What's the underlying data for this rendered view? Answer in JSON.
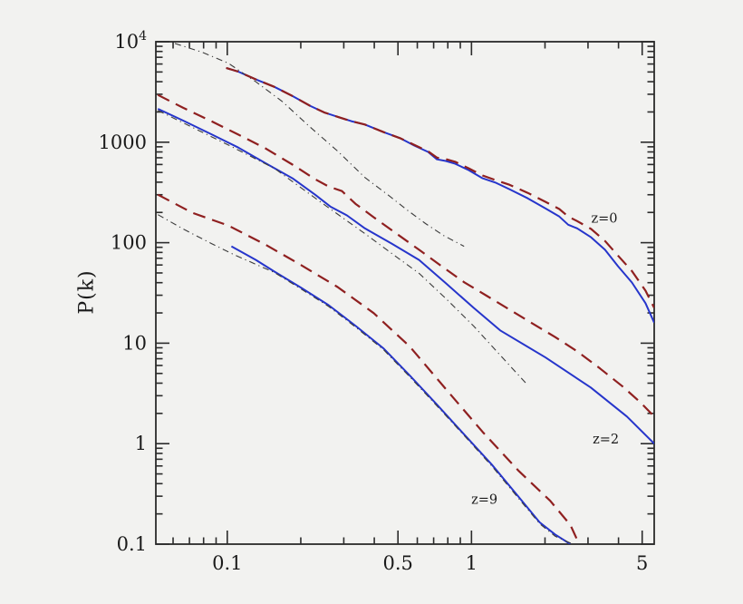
{
  "figure": {
    "background": "#f2f2f0",
    "frame_color": "#2b2b2b",
    "text_color": "#1a1a1a"
  },
  "chart_data": {
    "type": "line",
    "title": "",
    "x_axis": {
      "scale": "log",
      "range": [
        0.051,
        5.6
      ],
      "label": "",
      "ticks": [
        {
          "v": 0.1,
          "label": "0.1"
        },
        {
          "v": 0.5,
          "label": "0.5"
        },
        {
          "v": 1,
          "label": "1"
        },
        {
          "v": 5,
          "label": "5"
        }
      ]
    },
    "y_axis": {
      "scale": "log",
      "range": [
        0.1,
        10000
      ],
      "label": "P(k)",
      "ticks": [
        {
          "v": 10000,
          "label": "10",
          "exp": "4"
        },
        {
          "v": 1000,
          "label": "1000"
        },
        {
          "v": 100,
          "label": "100"
        },
        {
          "v": 10,
          "label": "10"
        },
        {
          "v": 1,
          "label": "1"
        },
        {
          "v": 0.1,
          "label": "0.1"
        }
      ]
    },
    "annotations": [
      {
        "text": "z=0",
        "k": 3.5,
        "P": 175
      },
      {
        "text": "z=2",
        "k": 3.55,
        "P": 1.11
      },
      {
        "text": "z=9",
        "k": 1.13,
        "P": 0.28
      }
    ],
    "colors": {
      "blue_solid": "#2635cb",
      "red_dashed": "#8f2020",
      "dashdot_black": "#3b3b3b"
    },
    "series": [
      {
        "name": "z0-solid-blue",
        "group": "z=0",
        "style": "solid",
        "color": "#2635cb",
        "width": 2,
        "points": [
          [
            0.099,
            5480
          ],
          [
            0.111,
            5040
          ],
          [
            0.132,
            4190
          ],
          [
            0.156,
            3550
          ],
          [
            0.185,
            2880
          ],
          [
            0.219,
            2290
          ],
          [
            0.249,
            1980
          ],
          [
            0.283,
            1790
          ],
          [
            0.322,
            1620
          ],
          [
            0.366,
            1500
          ],
          [
            0.437,
            1260
          ],
          [
            0.514,
            1090
          ],
          [
            0.583,
            926
          ],
          [
            0.664,
            800
          ],
          [
            0.722,
            675
          ],
          [
            0.785,
            650
          ],
          [
            0.858,
            610
          ],
          [
            0.974,
            527
          ],
          [
            1.11,
            437
          ],
          [
            1.26,
            394
          ],
          [
            1.43,
            341
          ],
          [
            1.7,
            276
          ],
          [
            2.01,
            219
          ],
          [
            2.29,
            182
          ],
          [
            2.49,
            151
          ],
          [
            2.71,
            139
          ],
          [
            3.09,
            113
          ],
          [
            3.52,
            85
          ],
          [
            3.98,
            58.4
          ],
          [
            4.54,
            40.2
          ],
          [
            5.16,
            25
          ],
          [
            5.6,
            16
          ]
        ]
      },
      {
        "name": "z2-solid-blue",
        "group": "z=2",
        "style": "solid",
        "color": "#2635cb",
        "width": 2,
        "points": [
          [
            0.052,
            2150
          ],
          [
            0.066,
            1640
          ],
          [
            0.086,
            1200
          ],
          [
            0.111,
            884
          ],
          [
            0.143,
            621
          ],
          [
            0.185,
            437
          ],
          [
            0.229,
            300
          ],
          [
            0.264,
            229
          ],
          [
            0.309,
            187
          ],
          [
            0.366,
            139
          ],
          [
            0.472,
            97.6
          ],
          [
            0.61,
            67.4
          ],
          [
            0.787,
            39.3
          ],
          [
            1.02,
            22.5
          ],
          [
            1.31,
            13.4
          ],
          [
            2.01,
            7.2
          ],
          [
            3.08,
            3.62
          ],
          [
            4.33,
            1.86
          ],
          [
            5.6,
            1.0
          ]
        ]
      },
      {
        "name": "z9-solid-blue",
        "group": "z=9",
        "style": "solid",
        "color": "#2635cb",
        "width": 2,
        "points": [
          [
            0.104,
            92
          ],
          [
            0.131,
            67.4
          ],
          [
            0.156,
            51.5
          ],
          [
            0.201,
            35.5
          ],
          [
            0.26,
            23.9
          ],
          [
            0.336,
            14.8
          ],
          [
            0.437,
            8.85
          ],
          [
            0.56,
            4.74
          ],
          [
            0.723,
            2.44
          ],
          [
            0.934,
            1.23
          ],
          [
            1.21,
            0.62
          ],
          [
            1.56,
            0.295
          ],
          [
            1.9,
            0.165
          ],
          [
            2.2,
            0.125
          ],
          [
            2.54,
            0.1
          ]
        ]
      },
      {
        "name": "z0-dashdot-black",
        "group": "z=0",
        "style": "dashdot",
        "color": "#3b3b3b",
        "width": 1.1,
        "points": [
          [
            0.061,
            9620
          ],
          [
            0.079,
            7850
          ],
          [
            0.101,
            6110
          ],
          [
            0.131,
            3990
          ],
          [
            0.168,
            2540
          ],
          [
            0.218,
            1420
          ],
          [
            0.283,
            816
          ],
          [
            0.366,
            446
          ],
          [
            0.464,
            288
          ],
          [
            0.546,
            211
          ],
          [
            0.648,
            155
          ],
          [
            0.768,
            118
          ],
          [
            0.933,
            92
          ]
        ]
      },
      {
        "name": "z2-dashdot-black",
        "group": "z=2",
        "style": "dashdot",
        "color": "#3b3b3b",
        "width": 1.1,
        "points": [
          [
            0.052,
            2070
          ],
          [
            0.101,
            938
          ],
          [
            0.156,
            549
          ],
          [
            0.24,
            256
          ],
          [
            0.366,
            123
          ],
          [
            0.472,
            78
          ],
          [
            0.61,
            49.5
          ],
          [
            0.787,
            27.7
          ],
          [
            1.02,
            14.8
          ],
          [
            1.31,
            7.6
          ],
          [
            1.67,
            4.0
          ]
        ]
      },
      {
        "name": "z9-dashdot-black",
        "group": "z=9",
        "style": "dashdot",
        "color": "#3b3b3b",
        "width": 1.1,
        "points": [
          [
            0.052,
            190
          ],
          [
            0.066,
            137
          ],
          [
            0.086,
            98.1
          ],
          [
            0.106,
            76.5
          ],
          [
            0.131,
            60.8
          ],
          [
            0.156,
            50.5
          ],
          [
            0.201,
            34.5
          ],
          [
            0.26,
            23.2
          ],
          [
            0.336,
            14.4
          ],
          [
            0.437,
            8.6
          ],
          [
            0.56,
            4.6
          ],
          [
            0.723,
            2.37
          ],
          [
            0.934,
            1.2
          ],
          [
            1.21,
            0.6
          ],
          [
            1.56,
            0.285
          ],
          [
            1.9,
            0.16
          ],
          [
            2.2,
            0.12
          ],
          [
            2.6,
            0.1
          ]
        ]
      },
      {
        "name": "z0-dashed-red",
        "group": "z=0",
        "style": "dashed",
        "color": "#8f2020",
        "width": 2.2,
        "points": [
          [
            0.099,
            5480
          ],
          [
            0.111,
            5040
          ],
          [
            0.132,
            4190
          ],
          [
            0.156,
            3550
          ],
          [
            0.185,
            2880
          ],
          [
            0.219,
            2290
          ],
          [
            0.249,
            1980
          ],
          [
            0.283,
            1790
          ],
          [
            0.322,
            1620
          ],
          [
            0.366,
            1500
          ],
          [
            0.437,
            1260
          ],
          [
            0.514,
            1090
          ],
          [
            0.583,
            940
          ],
          [
            0.664,
            813
          ],
          [
            0.722,
            702
          ],
          [
            0.785,
            679
          ],
          [
            0.858,
            638
          ],
          [
            0.974,
            550
          ],
          [
            1.11,
            466
          ],
          [
            1.26,
            418
          ],
          [
            1.43,
            377
          ],
          [
            1.7,
            313
          ],
          [
            2.01,
            255
          ],
          [
            2.29,
            216
          ],
          [
            2.49,
            182
          ],
          [
            2.71,
            164
          ],
          [
            3.09,
            137
          ],
          [
            3.52,
            104
          ],
          [
            3.98,
            74.5
          ],
          [
            4.54,
            52.2
          ],
          [
            5.16,
            33.3
          ],
          [
            5.6,
            22.5
          ]
        ]
      },
      {
        "name": "z2-dashed-red",
        "group": "z=2",
        "style": "dashed",
        "color": "#8f2020",
        "width": 2.2,
        "points": [
          [
            0.052,
            2950
          ],
          [
            0.066,
            2200
          ],
          [
            0.086,
            1620
          ],
          [
            0.111,
            1190
          ],
          [
            0.143,
            871
          ],
          [
            0.185,
            598
          ],
          [
            0.229,
            428
          ],
          [
            0.26,
            362
          ],
          [
            0.295,
            326
          ],
          [
            0.335,
            244
          ],
          [
            0.398,
            179
          ],
          [
            0.493,
            123
          ],
          [
            0.61,
            85
          ],
          [
            0.754,
            58.4
          ],
          [
            0.934,
            40.3
          ],
          [
            1.16,
            29.4
          ],
          [
            1.43,
            21.6
          ],
          [
            1.77,
            15.8
          ],
          [
            2.19,
            11.6
          ],
          [
            2.71,
            8.3
          ],
          [
            3.36,
            5.6
          ],
          [
            4.16,
            3.7
          ],
          [
            4.94,
            2.55
          ],
          [
            5.6,
            1.86
          ]
        ]
      },
      {
        "name": "z9-dashed-red",
        "group": "z=9",
        "style": "dashed",
        "color": "#8f2020",
        "width": 2.2,
        "points": [
          [
            0.052,
            300
          ],
          [
            0.072,
            198
          ],
          [
            0.101,
            148
          ],
          [
            0.143,
            96
          ],
          [
            0.201,
            59.7
          ],
          [
            0.283,
            36.2
          ],
          [
            0.398,
            19.9
          ],
          [
            0.56,
            9.2
          ],
          [
            0.787,
            3.47
          ],
          [
            1.11,
            1.31
          ],
          [
            1.56,
            0.536
          ],
          [
            2.1,
            0.27
          ],
          [
            2.54,
            0.155
          ],
          [
            2.76,
            0.1
          ]
        ]
      }
    ]
  }
}
